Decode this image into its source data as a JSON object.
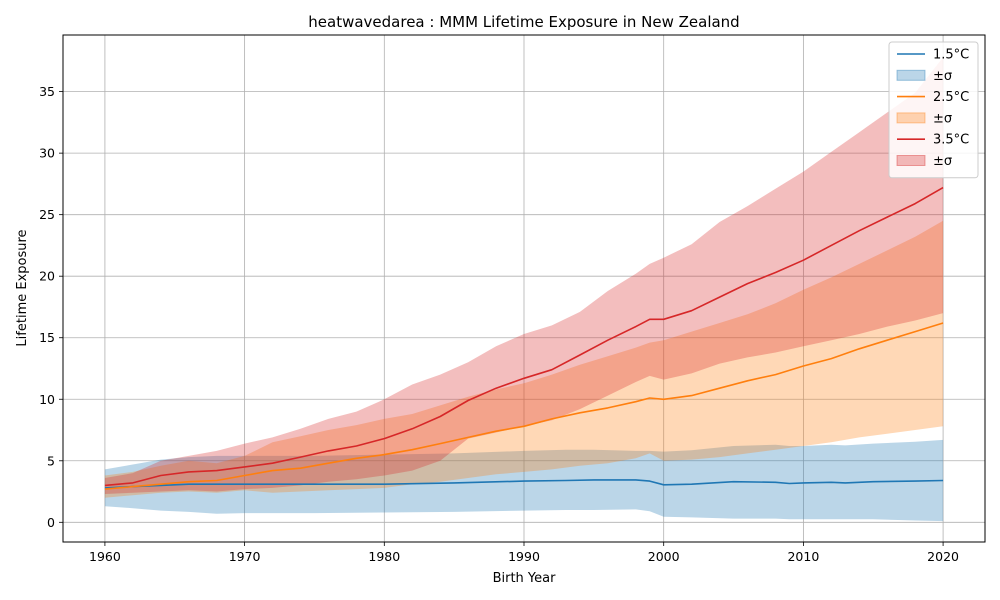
{
  "chart_data": {
    "type": "line",
    "title": "heatwavedarea : MMM Lifetime Exposure in New Zealand",
    "xlabel": "Birth Year",
    "ylabel": "Lifetime Exposure",
    "xlim": [
      1957,
      2023
    ],
    "ylim": [
      -1.6,
      39.6
    ],
    "xticks": [
      1960,
      1970,
      1980,
      1990,
      2000,
      2010,
      2020
    ],
    "yticks": [
      0,
      5,
      10,
      15,
      20,
      25,
      30,
      35
    ],
    "grid": true,
    "legend_position": "top-right",
    "legend": [
      {
        "label": "1.5°C",
        "kind": "line",
        "color": "#1f77b4"
      },
      {
        "label": "±σ",
        "kind": "band",
        "color": "#1f77b4"
      },
      {
        "label": "2.5°C",
        "kind": "line",
        "color": "#ff7f0e"
      },
      {
        "label": "±σ",
        "kind": "band",
        "color": "#ff7f0e"
      },
      {
        "label": "3.5°C",
        "kind": "line",
        "color": "#d62728"
      },
      {
        "label": "±σ",
        "kind": "band",
        "color": "#d62728"
      }
    ],
    "series": [
      {
        "name": "1.5°C",
        "color": "#1f77b4",
        "x": [
          1960,
          1962,
          1964,
          1966,
          1968,
          1970,
          1975,
          1980,
          1985,
          1990,
          1993,
          1995,
          1998,
          1999,
          2000,
          2002,
          2005,
          2008,
          2009,
          2010,
          2012,
          2013,
          2015,
          2018,
          2020
        ],
        "y": [
          2.8,
          2.9,
          3.0,
          3.1,
          3.1,
          3.1,
          3.1,
          3.1,
          3.2,
          3.35,
          3.4,
          3.45,
          3.45,
          3.35,
          3.05,
          3.1,
          3.3,
          3.25,
          3.15,
          3.2,
          3.25,
          3.2,
          3.3,
          3.35,
          3.4
        ],
        "lower": [
          1.3,
          1.15,
          0.95,
          0.85,
          0.7,
          0.75,
          0.75,
          0.8,
          0.85,
          0.95,
          1.0,
          1.0,
          1.05,
          0.9,
          0.45,
          0.4,
          0.3,
          0.3,
          0.25,
          0.25,
          0.25,
          0.25,
          0.25,
          0.15,
          0.1
        ],
        "upper": [
          4.3,
          4.7,
          5.1,
          5.3,
          5.4,
          5.4,
          5.4,
          5.5,
          5.6,
          5.8,
          5.9,
          5.9,
          5.8,
          5.8,
          5.75,
          5.85,
          6.2,
          6.3,
          6.2,
          6.2,
          6.3,
          6.25,
          6.4,
          6.55,
          6.7
        ]
      },
      {
        "name": "2.5°C",
        "color": "#ff7f0e",
        "x": [
          1960,
          1962,
          1964,
          1966,
          1968,
          1970,
          1972,
          1974,
          1976,
          1978,
          1980,
          1982,
          1984,
          1986,
          1988,
          1990,
          1992,
          1994,
          1996,
          1998,
          1999,
          2000,
          2002,
          2004,
          2006,
          2008,
          2010,
          2012,
          2014,
          2016,
          2018,
          2020
        ],
        "y": [
          2.7,
          2.9,
          3.1,
          3.3,
          3.4,
          3.8,
          4.2,
          4.4,
          4.8,
          5.2,
          5.5,
          5.9,
          6.4,
          6.9,
          7.4,
          7.8,
          8.4,
          8.9,
          9.3,
          9.8,
          10.1,
          10.0,
          10.3,
          10.9,
          11.5,
          12.0,
          12.7,
          13.3,
          14.1,
          14.8,
          15.5,
          16.2
        ],
        "lower": [
          2.0,
          2.2,
          2.4,
          2.5,
          2.4,
          2.6,
          2.4,
          2.5,
          2.6,
          2.7,
          2.8,
          3.1,
          3.3,
          3.6,
          3.9,
          4.1,
          4.3,
          4.6,
          4.8,
          5.2,
          5.6,
          5.0,
          5.1,
          5.3,
          5.6,
          5.9,
          6.2,
          6.5,
          6.9,
          7.2,
          7.5,
          7.8
        ],
        "upper": [
          3.8,
          4.1,
          4.6,
          5.0,
          4.8,
          5.4,
          6.5,
          7.0,
          7.5,
          7.9,
          8.4,
          8.8,
          9.5,
          10.2,
          10.8,
          11.3,
          12.0,
          12.8,
          13.5,
          14.2,
          14.6,
          14.8,
          15.5,
          16.2,
          16.9,
          17.8,
          18.9,
          19.9,
          21.0,
          22.1,
          23.2,
          24.5
        ]
      },
      {
        "name": "3.5°C",
        "color": "#d62728",
        "x": [
          1960,
          1962,
          1964,
          1966,
          1968,
          1970,
          1972,
          1974,
          1976,
          1978,
          1980,
          1982,
          1984,
          1986,
          1988,
          1990,
          1992,
          1994,
          1996,
          1998,
          1999,
          2000,
          2002,
          2004,
          2006,
          2008,
          2010,
          2012,
          2014,
          2016,
          2018,
          2020
        ],
        "y": [
          3.0,
          3.2,
          3.8,
          4.1,
          4.2,
          4.5,
          4.8,
          5.3,
          5.8,
          6.2,
          6.8,
          7.6,
          8.6,
          9.9,
          10.9,
          11.7,
          12.4,
          13.6,
          14.8,
          15.9,
          16.5,
          16.5,
          17.2,
          18.3,
          19.4,
          20.3,
          21.3,
          22.5,
          23.7,
          24.8,
          25.9,
          27.2
        ],
        "lower": [
          2.3,
          2.4,
          2.5,
          2.6,
          2.5,
          2.7,
          2.8,
          3.0,
          3.3,
          3.5,
          3.8,
          4.2,
          5.0,
          6.8,
          7.3,
          7.8,
          8.3,
          9.2,
          10.3,
          11.4,
          11.9,
          11.6,
          12.1,
          12.9,
          13.4,
          13.8,
          14.3,
          14.8,
          15.3,
          15.9,
          16.4,
          17.0
        ],
        "upper": [
          3.6,
          4.0,
          5.0,
          5.4,
          5.8,
          6.4,
          6.9,
          7.6,
          8.4,
          9.0,
          10.0,
          11.2,
          12.0,
          13.0,
          14.3,
          15.3,
          16.0,
          17.1,
          18.8,
          20.2,
          21.0,
          21.5,
          22.6,
          24.4,
          25.7,
          27.1,
          28.5,
          30.1,
          31.7,
          33.3,
          34.9,
          37.8
        ]
      }
    ]
  }
}
